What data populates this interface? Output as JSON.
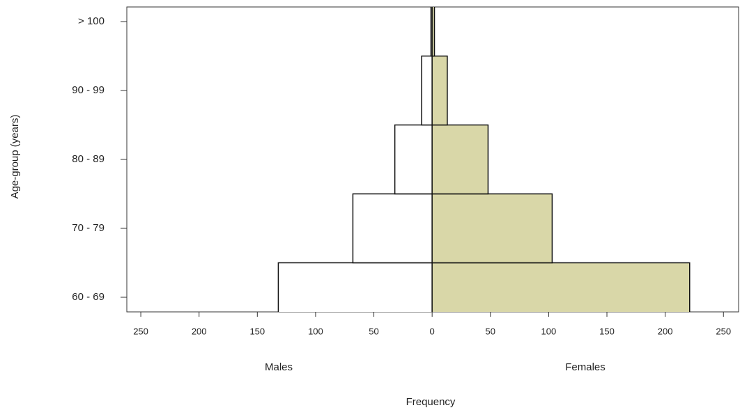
{
  "chart_data": {
    "type": "pyramid",
    "categories": [
      "60 - 69",
      "70 - 79",
      "80 - 89",
      "90 - 99",
      "> 100"
    ],
    "series": [
      {
        "name": "Males",
        "color": "#ffffff",
        "values": [
          132,
          68,
          32,
          9,
          1
        ]
      },
      {
        "name": "Females",
        "color": "#d9d7a8",
        "values": [
          221,
          103,
          48,
          13,
          2
        ]
      }
    ],
    "xlabel": "Frequency",
    "ylabel": "Age-group (years)",
    "xlim": [
      -262,
      263
    ],
    "xticks": [
      {
        "value": -250,
        "label": "250"
      },
      {
        "value": -200,
        "label": "200"
      },
      {
        "value": -150,
        "label": "150"
      },
      {
        "value": -100,
        "label": "100"
      },
      {
        "value": -50,
        "label": "50"
      },
      0,
      50,
      100,
      150,
      200,
      250
    ]
  }
}
